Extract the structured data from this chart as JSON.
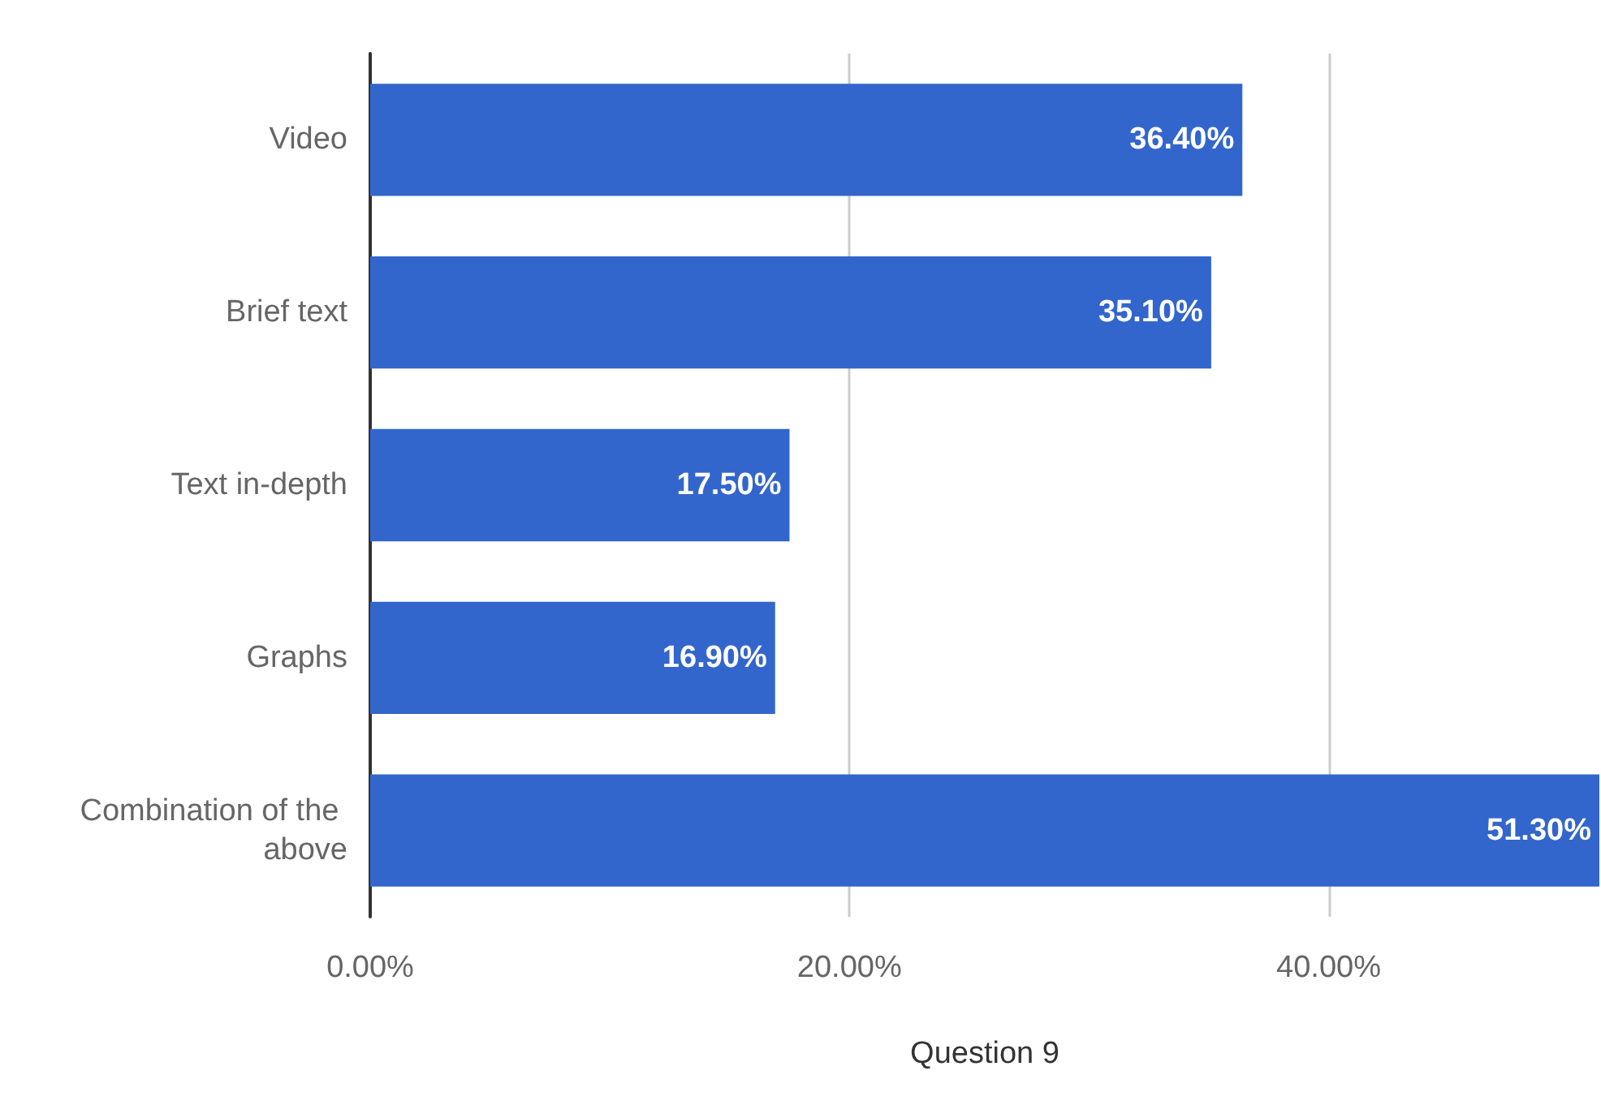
{
  "chart_data": {
    "type": "bar",
    "orientation": "horizontal",
    "xlabel": "Question 9",
    "categories": [
      "Video",
      "Brief text",
      "Text in-depth",
      "Graphs",
      "Combination of the above"
    ],
    "values": [
      36.4,
      35.1,
      17.5,
      16.9,
      51.3
    ],
    "value_labels": [
      "36.40%",
      "35.10%",
      "17.50%",
      "16.90%",
      "51.30%"
    ],
    "color": "#3366cc",
    "xlim": [
      0,
      51.3
    ],
    "xticks": [
      {
        "value": 0,
        "label": "0.00%"
      },
      {
        "value": 20,
        "label": "20.00%"
      },
      {
        "value": 40,
        "label": "40.00%"
      }
    ],
    "grid": "x"
  }
}
